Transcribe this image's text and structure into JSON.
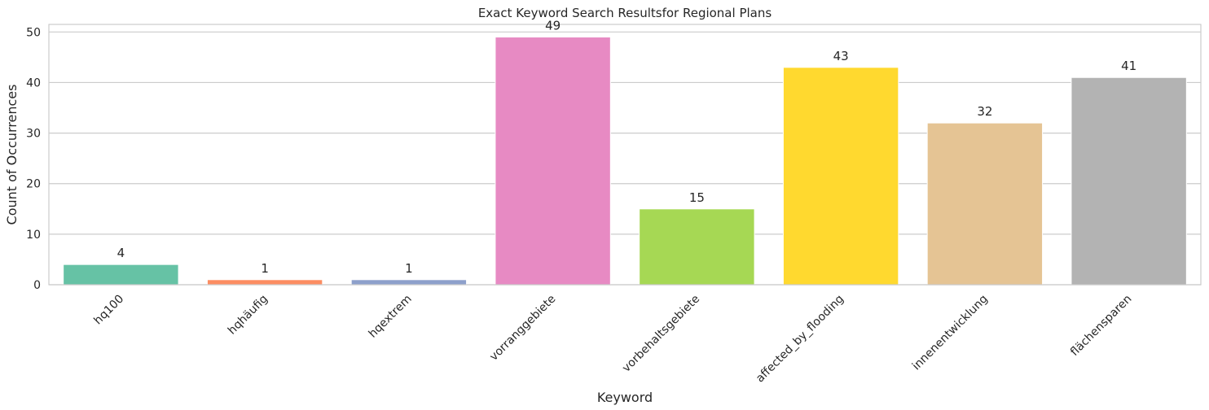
{
  "chart_data": {
    "type": "bar",
    "title": "Exact Keyword Search Resultsfor Regional Plans",
    "xlabel": "Keyword",
    "ylabel": "Count of Occurrences",
    "categories": [
      "hq100",
      "hqhäufig",
      "hqextrem",
      "vorranggebiete",
      "vorbehaltsgebiete",
      "affected_by_flooding",
      "innenentwicklung",
      "flächensparen"
    ],
    "values": [
      4,
      1,
      1,
      49,
      15,
      43,
      32,
      41
    ],
    "data_labels": [
      "4",
      "1",
      "1",
      "49",
      "15",
      "43",
      "32",
      "41"
    ],
    "colors": [
      "#66c2a5",
      "#fc8d62",
      "#8da0cb",
      "#e78ac3",
      "#a6d854",
      "#ffd92f",
      "#e5c494",
      "#b3b3b3"
    ],
    "ylim": [
      0,
      51.5
    ],
    "yticks": [
      0,
      10,
      20,
      30,
      40,
      50
    ],
    "ytick_labels": [
      "0",
      "10",
      "20",
      "30",
      "40",
      "50"
    ],
    "grid": true,
    "legend": "none"
  }
}
